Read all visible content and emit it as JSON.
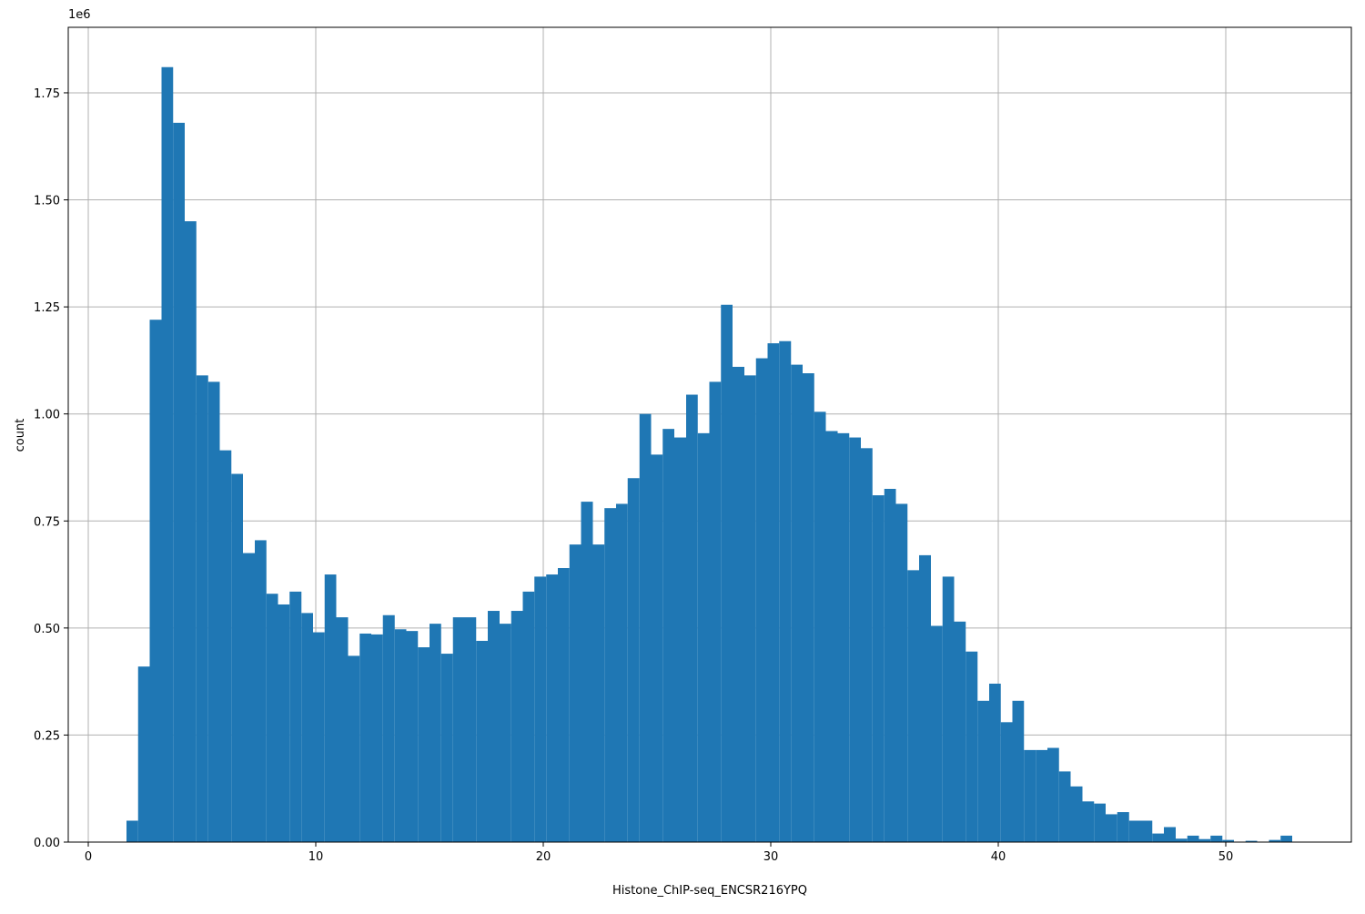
{
  "chart_data": {
    "type": "histogram",
    "x_label": "Histone_ChIP-seq_ENCSR216YPQ",
    "y_label": "count",
    "y_offset_label": "1e6",
    "color": "#1f77b4",
    "grid": true,
    "bins": [
      1.68,
      2.19,
      2.7,
      3.22,
      3.73,
      4.24,
      4.75,
      5.27,
      5.78,
      6.29,
      6.8,
      7.32,
      7.83,
      8.34,
      8.85,
      9.37,
      9.88,
      10.39,
      10.9,
      11.42,
      11.93,
      12.44,
      12.95,
      13.47,
      13.98,
      14.49,
      15.0,
      15.51,
      16.03,
      16.54,
      17.05,
      17.56,
      18.08,
      18.59,
      19.1,
      19.61,
      20.13,
      20.64,
      21.15,
      21.66,
      22.18,
      22.69,
      23.2,
      23.71,
      24.23,
      24.74,
      25.25,
      25.76,
      26.28,
      26.79,
      27.3,
      27.81,
      28.32,
      28.84,
      29.35,
      29.86,
      30.37,
      30.89,
      31.4,
      31.91,
      32.42,
      32.94,
      33.45,
      33.96,
      34.47,
      34.99,
      35.5,
      36.01,
      36.52,
      37.04,
      37.55,
      38.06,
      38.57,
      39.09,
      39.6,
      40.11,
      40.62,
      41.13,
      41.65,
      42.16,
      42.67,
      43.18,
      43.7,
      44.21,
      44.72,
      45.23,
      45.75,
      46.26,
      46.77,
      47.28,
      47.8,
      48.31,
      48.82,
      49.33,
      49.85,
      50.36,
      50.87,
      51.38,
      51.9,
      52.41,
      52.92
    ],
    "counts": [
      50000,
      410000,
      1220000,
      1810000,
      1680000,
      1450000,
      1090000,
      1075000,
      915000,
      860000,
      675000,
      705000,
      580000,
      555000,
      585000,
      535000,
      490000,
      625000,
      525000,
      435000,
      487000,
      485000,
      530000,
      497000,
      493000,
      455000,
      510000,
      440000,
      525000,
      525000,
      470000,
      540000,
      510000,
      540000,
      585000,
      620000,
      625000,
      640000,
      695000,
      795000,
      695000,
      780000,
      790000,
      850000,
      1000000,
      905000,
      965000,
      945000,
      1045000,
      955000,
      1075000,
      1255000,
      1110000,
      1090000,
      1130000,
      1165000,
      1170000,
      1115000,
      1095000,
      1005000,
      960000,
      955000,
      945000,
      920000,
      810000,
      825000,
      790000,
      635000,
      670000,
      505000,
      620000,
      515000,
      445000,
      330000,
      370000,
      280000,
      330000,
      215000,
      215000,
      220000,
      165000,
      130000,
      95000,
      90000,
      65000,
      70000,
      50000,
      50000,
      20000,
      35000,
      8000,
      15000,
      7000,
      15000,
      5000,
      1000,
      3000,
      1000,
      5000,
      15000
    ],
    "xlim": [
      -0.88,
      55.52
    ],
    "xticks": [
      0,
      10,
      20,
      30,
      40,
      50
    ],
    "ylim": [
      0,
      1903000
    ],
    "yticks": [
      {
        "value": 0,
        "label": "0.00"
      },
      {
        "value": 250000,
        "label": "0.25"
      },
      {
        "value": 500000,
        "label": "0.50"
      },
      {
        "value": 750000,
        "label": "0.75"
      },
      {
        "value": 1000000,
        "label": "1.00"
      },
      {
        "value": 1250000,
        "label": "1.25"
      },
      {
        "value": 1500000,
        "label": "1.50"
      },
      {
        "value": 1750000,
        "label": "1.75"
      }
    ]
  }
}
